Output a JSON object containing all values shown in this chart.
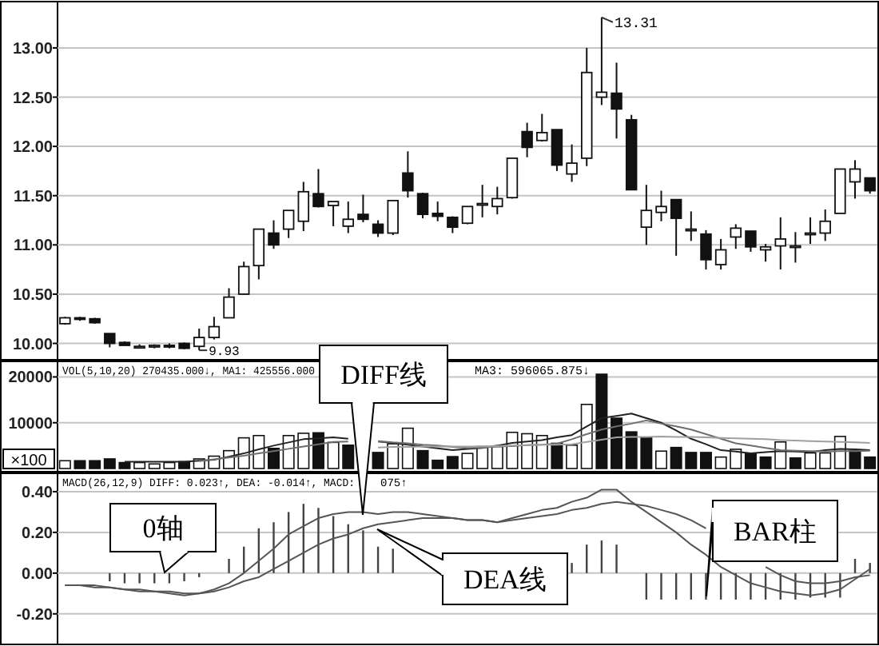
{
  "chart_data": [
    {
      "type": "candlestick",
      "categories": [
        null,
        null,
        null,
        null,
        null,
        null,
        null,
        null,
        null,
        null,
        null,
        null,
        null,
        null,
        null,
        null,
        null,
        null,
        null,
        null,
        null,
        null,
        null,
        null,
        null,
        null,
        null,
        null,
        null,
        null,
        null,
        null,
        null,
        null,
        null,
        null,
        null,
        null,
        null,
        null,
        null,
        null,
        null,
        null,
        null,
        null,
        null,
        null,
        null,
        null,
        null,
        null,
        null,
        null,
        null
      ],
      "ohlc": [
        [
          10.2,
          10.27,
          10.19,
          10.26
        ],
        [
          10.26,
          10.27,
          10.23,
          10.25
        ],
        [
          10.25,
          10.26,
          10.2,
          10.21
        ],
        [
          10.1,
          10.1,
          9.96,
          10.0
        ],
        [
          10.01,
          10.02,
          9.98,
          9.98
        ],
        [
          9.97,
          9.99,
          9.95,
          9.97
        ],
        [
          9.97,
          9.99,
          9.95,
          9.98
        ],
        [
          9.98,
          10.0,
          9.95,
          9.97
        ],
        [
          10.0,
          10.01,
          9.94,
          9.95
        ],
        [
          9.97,
          10.15,
          9.93,
          10.06
        ],
        [
          10.06,
          10.27,
          10.04,
          10.17
        ],
        [
          10.26,
          10.56,
          10.26,
          10.47
        ],
        [
          10.5,
          10.83,
          10.5,
          10.78
        ],
        [
          10.79,
          11.16,
          10.65,
          11.16
        ],
        [
          11.12,
          11.25,
          10.96,
          11.0
        ],
        [
          11.16,
          11.35,
          11.07,
          11.35
        ],
        [
          11.24,
          11.64,
          11.14,
          11.54
        ],
        [
          11.52,
          11.77,
          11.38,
          11.39
        ],
        [
          11.4,
          11.44,
          11.19,
          11.44
        ],
        [
          11.19,
          11.44,
          11.12,
          11.26
        ],
        [
          11.31,
          11.51,
          11.23,
          11.26
        ],
        [
          11.21,
          11.25,
          11.08,
          11.12
        ],
        [
          11.12,
          11.45,
          11.1,
          11.45
        ],
        [
          11.73,
          11.95,
          11.48,
          11.55
        ],
        [
          11.52,
          11.53,
          11.27,
          11.31
        ],
        [
          11.32,
          11.44,
          11.24,
          11.29
        ],
        [
          11.28,
          11.29,
          11.12,
          11.18
        ],
        [
          11.22,
          11.39,
          11.21,
          11.39
        ],
        [
          11.41,
          11.61,
          11.28,
          11.42
        ],
        [
          11.39,
          11.59,
          11.31,
          11.47
        ],
        [
          11.48,
          11.88,
          11.47,
          11.88
        ],
        [
          12.15,
          12.24,
          11.89,
          11.99
        ],
        [
          12.06,
          12.33,
          12.05,
          12.14
        ],
        [
          12.17,
          12.17,
          11.75,
          11.81
        ],
        [
          11.72,
          12.02,
          11.64,
          11.83
        ],
        [
          11.88,
          13.0,
          11.8,
          12.75
        ],
        [
          12.5,
          13.31,
          12.42,
          12.55
        ],
        [
          12.54,
          12.85,
          12.08,
          12.38
        ],
        [
          12.27,
          12.32,
          11.56,
          11.56
        ],
        [
          11.18,
          11.61,
          11.0,
          11.35
        ],
        [
          11.33,
          11.55,
          11.24,
          11.39
        ],
        [
          11.46,
          11.46,
          10.89,
          11.27
        ],
        [
          11.16,
          11.34,
          11.04,
          11.16
        ],
        [
          11.11,
          11.15,
          10.75,
          10.85
        ],
        [
          10.8,
          11.06,
          10.75,
          10.95
        ],
        [
          11.08,
          11.21,
          10.96,
          11.17
        ],
        [
          11.14,
          11.14,
          10.93,
          10.98
        ],
        [
          10.95,
          11.01,
          10.83,
          10.98
        ],
        [
          10.99,
          11.28,
          10.75,
          11.06
        ],
        [
          10.99,
          11.13,
          10.82,
          10.99
        ],
        [
          11.12,
          11.28,
          11.01,
          11.12
        ],
        [
          11.12,
          11.36,
          11.04,
          11.24
        ],
        [
          11.32,
          11.77,
          11.32,
          11.77
        ],
        [
          11.64,
          11.86,
          11.47,
          11.77
        ],
        [
          11.68,
          11.68,
          11.52,
          11.55
        ]
      ],
      "ylim": [
        9.85,
        13.47
      ],
      "yticks": [
        {
          "value": 10,
          "label": "10.00"
        },
        {
          "value": 10.5,
          "label": "10.50"
        },
        {
          "value": 11,
          "label": "11.00"
        },
        {
          "value": 11.5,
          "label": "11.50"
        },
        {
          "value": 12,
          "label": "12.00"
        },
        {
          "value": 12.5,
          "label": "12.50"
        },
        {
          "value": 13,
          "label": "13.00"
        }
      ],
      "grid": "y",
      "tick_labels": "y",
      "annotations": [
        "13.31",
        "9.93"
      ]
    },
    {
      "type": "bar",
      "categories": [
        null,
        null,
        null,
        null,
        null,
        null,
        null,
        null,
        null,
        null,
        null,
        null,
        null,
        null,
        null,
        null,
        null,
        null,
        null,
        null,
        null,
        null,
        null,
        null,
        null,
        null,
        null,
        null,
        null,
        null,
        null,
        null,
        null,
        null,
        null,
        null,
        null,
        null,
        null,
        null,
        null,
        null,
        null,
        null,
        null,
        null,
        null,
        null,
        null,
        null,
        null,
        null,
        null,
        null,
        null
      ],
      "series": [
        {
          "values": [
            1700,
            1700,
            1700,
            2100,
            1300,
            1300,
            1000,
            1300,
            1500,
            2100,
            2700,
            3900,
            6700,
            7200,
            4400,
            7200,
            7700,
            7800,
            5700,
            5100,
            null,
            3500,
            5400,
            8800,
            3900,
            1800,
            2600,
            3300,
            4800,
            4800,
            7900,
            7600,
            7200,
            5500,
            5100,
            14000,
            20600,
            11000,
            8000,
            6800,
            3800,
            4600,
            3500,
            3500,
            2500,
            4200,
            3300,
            2500,
            5800,
            2300,
            3400,
            3400,
            7000,
            3900,
            2500
          ],
          "colors": [
            "#ffffff",
            "#111111",
            "#111111",
            "#111111",
            "#111111",
            "#ffffff",
            "#ffffff",
            "#ffffff",
            "#111111",
            "#ffffff",
            "#ffffff",
            "#ffffff",
            "#ffffff",
            "#ffffff",
            "#111111",
            "#ffffff",
            "#ffffff",
            "#111111",
            "#ffffff",
            "#111111",
            null,
            "#111111",
            "#ffffff",
            "#ffffff",
            "#111111",
            "#111111",
            "#111111",
            "#ffffff",
            "#ffffff",
            "#ffffff",
            "#ffffff",
            "#ffffff",
            "#ffffff",
            "#111111",
            "#ffffff",
            "#ffffff",
            "#111111",
            "#111111",
            "#111111",
            "#111111",
            "#ffffff",
            "#111111",
            "#111111",
            "#111111",
            "#ffffff",
            "#ffffff",
            "#111111",
            "#111111",
            "#ffffff",
            "#111111",
            "#ffffff",
            "#ffffff",
            "#ffffff",
            "#111111",
            "#111111"
          ]
        },
        {
          "type": "line",
          "color": "#222222",
          "values": [
            null,
            null,
            null,
            null,
            1500,
            1500,
            1500,
            1500,
            1500,
            1700,
            1900,
            2600,
            3300,
            4200,
            5000,
            5700,
            6400,
            6600,
            6800,
            6500,
            null,
            5900,
            5600,
            5200,
            4800,
            4400,
            4000,
            4300,
            4500,
            5000,
            5600,
            5900,
            6200,
            6800,
            7300,
            9200,
            11000,
            11500,
            12000,
            11000,
            10000,
            8300,
            6500,
            5300,
            4000,
            3700,
            3300,
            3600,
            3800,
            3700,
            3600,
            4000,
            4300,
            4200,
            4000
          ]
        },
        {
          "type": "line",
          "color": "#6e6e6e",
          "values": [
            null,
            null,
            null,
            null,
            null,
            null,
            null,
            null,
            null,
            1600,
            2000,
            2400,
            2800,
            3300,
            3800,
            4300,
            4800,
            5300,
            5800,
            5900,
            null,
            6000,
            5700,
            5500,
            5200,
            5000,
            4700,
            4500,
            4600,
            4800,
            4900,
            5100,
            5200,
            5400,
            6400,
            7500,
            8500,
            9200,
            9800,
            10500,
            9800,
            9200,
            8500,
            7500,
            6500,
            5500,
            5000,
            4500,
            4000,
            3900,
            3800,
            3700,
            3800,
            3800,
            3900
          ]
        },
        {
          "type": "line",
          "color": "#a0a0a0",
          "values": [
            null,
            null,
            null,
            null,
            null,
            null,
            null,
            null,
            null,
            null,
            null,
            null,
            null,
            null,
            null,
            null,
            null,
            null,
            null,
            null,
            null,
            4600,
            4700,
            4700,
            4800,
            4800,
            4800,
            4800,
            4800,
            4900,
            5000,
            5100,
            5200,
            5200,
            5300,
            5800,
            6300,
            6800,
            6900,
            6900,
            7000,
            6900,
            6900,
            6800,
            6700,
            6600,
            6500,
            6400,
            6200,
            6100,
            6000,
            5900,
            5800,
            5700,
            5600
          ]
        }
      ],
      "ylim": [
        0,
        23400
      ],
      "yticks": [
        10000,
        20000
      ],
      "grid": "y",
      "tick_labels": "y",
      "ylabel": "×100",
      "annotations": [
        "VOL(5,10,20) 270435.000↓, MA1: 425556.000",
        "MA3: 596065.875↓"
      ]
    },
    {
      "type": "line",
      "categories": [
        null,
        null,
        null,
        null,
        null,
        null,
        null,
        null,
        null,
        null,
        null,
        null,
        null,
        null,
        null,
        null,
        null,
        null,
        null,
        null,
        null,
        null,
        null,
        null,
        null,
        null,
        null,
        null,
        null,
        null,
        null,
        null,
        null,
        null,
        null,
        null,
        null,
        null,
        null,
        null,
        null,
        null,
        null,
        null,
        null,
        null,
        null,
        null,
        null,
        null,
        null,
        null,
        null,
        null,
        null
      ],
      "series": [
        {
          "type": "bar",
          "color": "#444444",
          "values": [
            null,
            null,
            null,
            -0.04,
            -0.05,
            -0.05,
            -0.05,
            -0.05,
            -0.04,
            -0.02,
            null,
            0.07,
            0.13,
            0.22,
            0.25,
            0.3,
            0.34,
            0.32,
            0.28,
            0.24,
            0.21,
            0.13,
            0.12,
            null,
            null,
            null,
            null,
            null,
            null,
            null,
            null,
            null,
            null,
            null,
            0.05,
            0.14,
            0.16,
            0.14,
            null,
            -0.13,
            -0.13,
            -0.13,
            -0.13,
            -0.13,
            -0.13,
            -0.13,
            -0.13,
            -0.13,
            -0.13,
            -0.13,
            -0.12,
            -0.12,
            -0.12,
            0.07,
            0.05
          ]
        },
        {
          "type": "line",
          "color": "#555555",
          "values": [
            -0.06,
            -0.06,
            -0.06,
            -0.07,
            -0.08,
            -0.09,
            -0.09,
            -0.1,
            -0.11,
            -0.1,
            -0.08,
            -0.05,
            0.0,
            0.06,
            0.12,
            0.19,
            0.23,
            0.27,
            0.29,
            0.3,
            0.3,
            0.29,
            0.3,
            0.3,
            0.29,
            0.28,
            0.27,
            0.26,
            0.26,
            0.25,
            0.27,
            0.29,
            0.31,
            0.32,
            0.35,
            0.37,
            0.41,
            0.41,
            0.35,
            0.3,
            0.25,
            0.2,
            0.14,
            0.09,
            0.03,
            -0.01,
            -0.05,
            -0.07,
            -0.09,
            -0.1,
            -0.11,
            -0.1,
            -0.08,
            -0.03,
            0.02
          ]
        },
        {
          "type": "line",
          "color": "#555555",
          "values": [
            -0.06,
            -0.06,
            -0.07,
            -0.07,
            -0.08,
            -0.08,
            -0.09,
            -0.09,
            -0.1,
            -0.1,
            -0.09,
            -0.07,
            -0.04,
            -0.02,
            0.02,
            0.06,
            0.1,
            0.14,
            0.17,
            0.19,
            0.22,
            0.24,
            0.25,
            0.26,
            0.27,
            0.27,
            0.27,
            0.26,
            0.26,
            0.25,
            0.26,
            0.27,
            0.28,
            0.29,
            0.31,
            0.32,
            0.34,
            0.35,
            0.34,
            0.33,
            0.31,
            0.29,
            0.26,
            0.22,
            null,
            null,
            null,
            0.03,
            -0.01,
            -0.04,
            -0.05,
            -0.05,
            -0.04,
            -0.02,
            -0.01
          ]
        }
      ],
      "ylim": [
        -0.35,
        0.49
      ],
      "yticks": [
        {
          "value": -0.2,
          "label": "-0.20"
        },
        {
          "value": 0,
          "label": "0.00"
        },
        {
          "value": 0.2,
          "label": "0.20"
        },
        {
          "value": 0.4,
          "label": "0.40"
        }
      ],
      "grid": "y",
      "tick_labels": "y",
      "annotations": [
        "MACD(26,12,9) DIFF: 0.023↑, DEA: -0.014↑, MACD:",
        "075↑",
        "DIFF线",
        "0轴",
        "DEA线",
        "BAR柱"
      ]
    }
  ]
}
